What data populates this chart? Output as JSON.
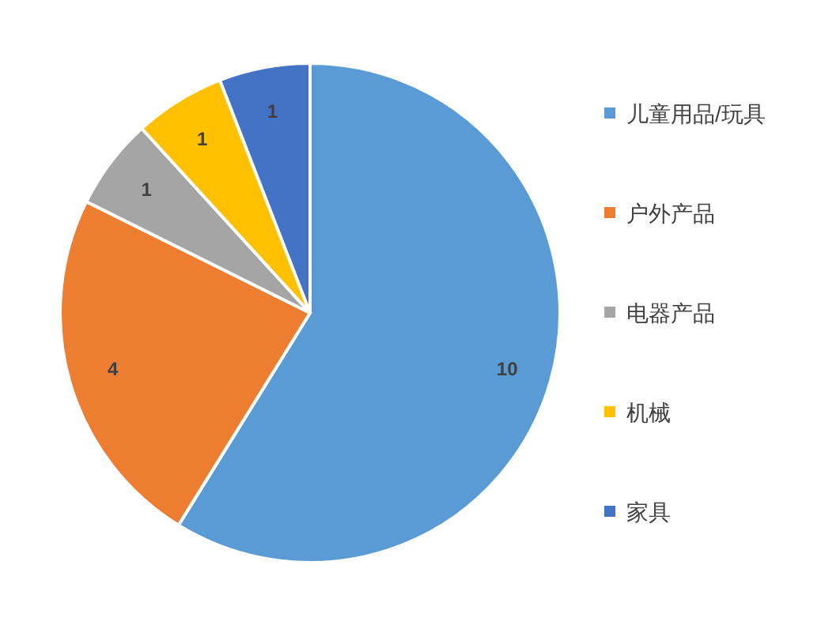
{
  "chart_data": {
    "type": "pie",
    "categories": [
      "儿童用品/玩具",
      "户外产品",
      "电器产品",
      "机械",
      "家具"
    ],
    "values": [
      10,
      4,
      1,
      1,
      1
    ],
    "colors": [
      "#5b9bd5",
      "#ed7d31",
      "#a5a5a5",
      "#ffc000",
      "#4472c4"
    ],
    "data_labels": true,
    "legend": "right"
  }
}
